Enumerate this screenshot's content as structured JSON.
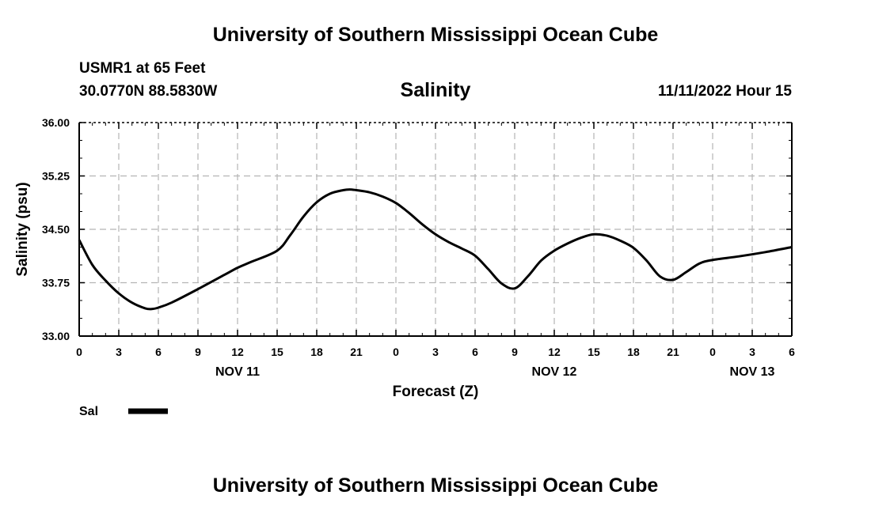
{
  "page": {
    "main_title": "University of Southern Mississippi Ocean Cube",
    "station": "USMR1 at 65 Feet",
    "coords": "30.0770N  88.5830W",
    "chart_title": "Salinity",
    "timestamp": "11/11/2022 Hour 15",
    "footer_title": "University of Southern Mississippi Ocean Cube"
  },
  "chart_data": {
    "type": "line",
    "title": "Salinity",
    "xlabel": "Forecast (Z)",
    "ylabel": "Salinity (psu)",
    "ylim": [
      33.0,
      36.0
    ],
    "xlim": [
      0,
      54
    ],
    "y_ticks": [
      "33.00",
      "33.75",
      "34.50",
      "35.25",
      "36.00"
    ],
    "x_ticks": [
      {
        "h": 0,
        "label": "0"
      },
      {
        "h": 3,
        "label": "3"
      },
      {
        "h": 6,
        "label": "6"
      },
      {
        "h": 9,
        "label": "9"
      },
      {
        "h": 12,
        "label": "12"
      },
      {
        "h": 15,
        "label": "15"
      },
      {
        "h": 18,
        "label": "18"
      },
      {
        "h": 21,
        "label": "21"
      },
      {
        "h": 24,
        "label": "0"
      },
      {
        "h": 27,
        "label": "3"
      },
      {
        "h": 30,
        "label": "6"
      },
      {
        "h": 33,
        "label": "9"
      },
      {
        "h": 36,
        "label": "12"
      },
      {
        "h": 39,
        "label": "15"
      },
      {
        "h": 42,
        "label": "18"
      },
      {
        "h": 45,
        "label": "21"
      },
      {
        "h": 48,
        "label": "0"
      },
      {
        "h": 51,
        "label": "3"
      },
      {
        "h": 54,
        "label": "6"
      }
    ],
    "day_labels": [
      {
        "h": 12,
        "label": "NOV 11"
      },
      {
        "h": 36,
        "label": "NOV 12"
      },
      {
        "h": 51,
        "label": "NOV 13"
      }
    ],
    "grid": true,
    "legend": {
      "position": "bottom-left",
      "color": "#000000"
    },
    "series": [
      {
        "name": "Sal",
        "color": "#000000",
        "x": [
          0,
          1,
          2,
          3,
          4,
          5,
          5.5,
          6,
          7,
          9,
          11,
          12,
          13,
          15,
          16,
          17,
          18,
          19,
          20,
          20.5,
          21,
          22,
          23,
          24,
          25,
          26,
          27,
          28,
          29,
          30,
          31,
          32,
          33,
          34,
          35,
          36,
          37,
          38,
          39,
          40,
          41,
          42,
          43,
          44,
          45,
          46,
          47,
          48,
          50,
          52,
          54
        ],
        "y": [
          34.35,
          34.0,
          33.78,
          33.6,
          33.47,
          33.39,
          33.38,
          33.4,
          33.47,
          33.66,
          33.86,
          33.96,
          34.04,
          34.2,
          34.42,
          34.68,
          34.88,
          35.0,
          35.05,
          35.06,
          35.05,
          35.02,
          34.96,
          34.87,
          34.73,
          34.57,
          34.43,
          34.32,
          34.23,
          34.13,
          33.94,
          33.74,
          33.67,
          33.84,
          34.06,
          34.2,
          34.3,
          34.38,
          34.43,
          34.41,
          34.34,
          34.24,
          34.06,
          33.84,
          33.79,
          33.9,
          34.02,
          34.07,
          34.12,
          34.18,
          34.25
        ]
      }
    ]
  }
}
